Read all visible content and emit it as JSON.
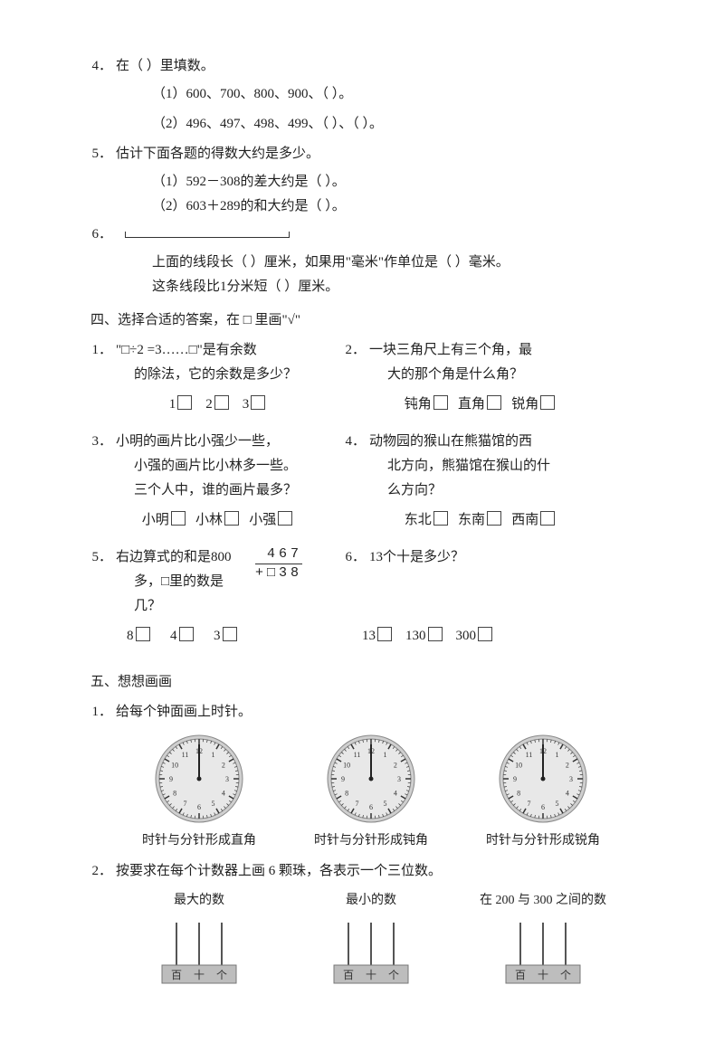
{
  "q4": {
    "num": "4．",
    "title": "在（    ）里填数。",
    "sub1": "（1）600、700、800、900、（        ）。",
    "sub2": "（2）496、497、498、499、（        ）、（        ）。"
  },
  "q5": {
    "num": "5．",
    "title": "估计下面各题的得数大约是多少。",
    "sub1": "（1）592－308的差大约是（        ）。",
    "sub2": "（2）603＋289的和大约是（        ）。"
  },
  "q6": {
    "num": "6．",
    "line1": "上面的线段长（        ）厘米，如果用\"毫米\"作单位是（        ）毫米。",
    "line2": "这条线段比1分米短（        ）厘米。"
  },
  "section4": {
    "title": "四、选择合适的答案，在 □ 里画\"√\"",
    "q1": {
      "num": "1．",
      "text1": "\"□÷2 =3……□\"是有余数",
      "text2": "的除法，它的余数是多少？",
      "choices": [
        "1",
        "2",
        "3"
      ]
    },
    "q2": {
      "num": "2．",
      "text1": "一块三角尺上有三个角，最",
      "text2": "大的那个角是什么角？",
      "choices": [
        "钝角",
        "直角",
        "锐角"
      ]
    },
    "q3": {
      "num": "3．",
      "text1": "小明的画片比小强少一些，",
      "text2": "小强的画片比小林多一些。",
      "text3": "三个人中，谁的画片最多？",
      "choices": [
        "小明",
        "小林",
        "小强"
      ]
    },
    "q4": {
      "num": "4．",
      "text1": "动物园的猴山在熊猫馆的西",
      "text2": "北方向，熊猫馆在猴山的什",
      "text3": "么方向？",
      "choices": [
        "东北",
        "东南",
        "西南"
      ]
    },
    "q5": {
      "num": "5．",
      "text1": "右边算式的和是800",
      "text2": "多，□里的数是几？",
      "addend1": "467",
      "addend2": "+□38",
      "choices": [
        "8",
        "4",
        "3"
      ]
    },
    "q6": {
      "num": "6．",
      "text1": "13个十是多少？",
      "choices": [
        "13",
        "130",
        "300"
      ]
    }
  },
  "section5": {
    "title": "五、想想画画",
    "q1": {
      "num": "1．",
      "title": "给每个钟面画上时针。",
      "clocks": [
        {
          "caption": "时针与分针形成直角"
        },
        {
          "caption": "时针与分针形成钝角"
        },
        {
          "caption": "时针与分针形成锐角"
        }
      ]
    },
    "q2": {
      "num": "2．",
      "title": "按要求在每个计数器上画 6 颗珠，各表示一个三位数。",
      "items": [
        {
          "caption": "最大的数"
        },
        {
          "caption": "最小的数"
        },
        {
          "caption": "在 200 与 300 之间的数"
        }
      ],
      "labels": [
        "百",
        "十",
        "个"
      ]
    }
  },
  "clock": {
    "face_fill": "#e8e8e8",
    "face_stroke": "#888",
    "rim_fill": "#cfcfcf",
    "text_fill": "#333",
    "hand_color": "#222"
  },
  "abacus": {
    "rod_color": "#555",
    "base_fill": "#bdbdbd",
    "base_stroke": "#777",
    "text_fill": "#333"
  }
}
